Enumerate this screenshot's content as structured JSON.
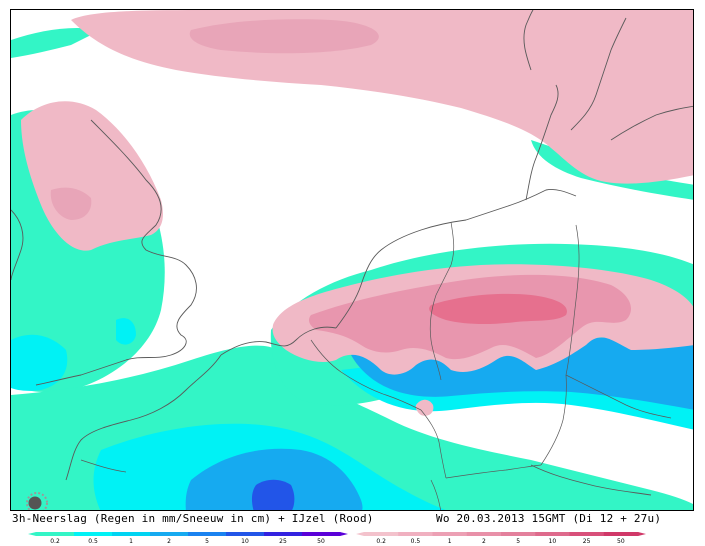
{
  "caption": {
    "title": "3h-Neerslag (Regen in mm/Sneeuw in cm) + IJzel (Rood)",
    "valid_time": "Wo 20.03.2013 15GMT (Di 12 + 27u)"
  },
  "legends": {
    "rain": {
      "ticks": [
        "0.2",
        "0.5",
        "1",
        "2",
        "5",
        "10",
        "25",
        "50"
      ],
      "colors": [
        "#33f5c6",
        "#00f2f5",
        "#00d4f2",
        "#16aaf0",
        "#1a82f0",
        "#2255e8",
        "#3322e0",
        "#5a00d8"
      ]
    },
    "ice": {
      "ticks": [
        "0.2",
        "0.5",
        "1",
        "2",
        "5",
        "10",
        "25",
        "50"
      ],
      "colors": [
        "#f3c2cc",
        "#f0b0c0",
        "#eca0b4",
        "#e890a8",
        "#e3809c",
        "#de6a8c",
        "#d8507a",
        "#d03868"
      ]
    }
  },
  "palette": {
    "rain_light": "#33f5c6",
    "rain_cyan": "#00f2f5",
    "rain_blue": "#16aaf0",
    "rain_dark": "#2255e8",
    "ice_light": "#f0b9c6",
    "ice_mid": "#e896ae",
    "ice_dark": "#e6708e",
    "coastline": "#5a5a5a"
  },
  "icons": {
    "loading": "loading-spinner-icon"
  }
}
